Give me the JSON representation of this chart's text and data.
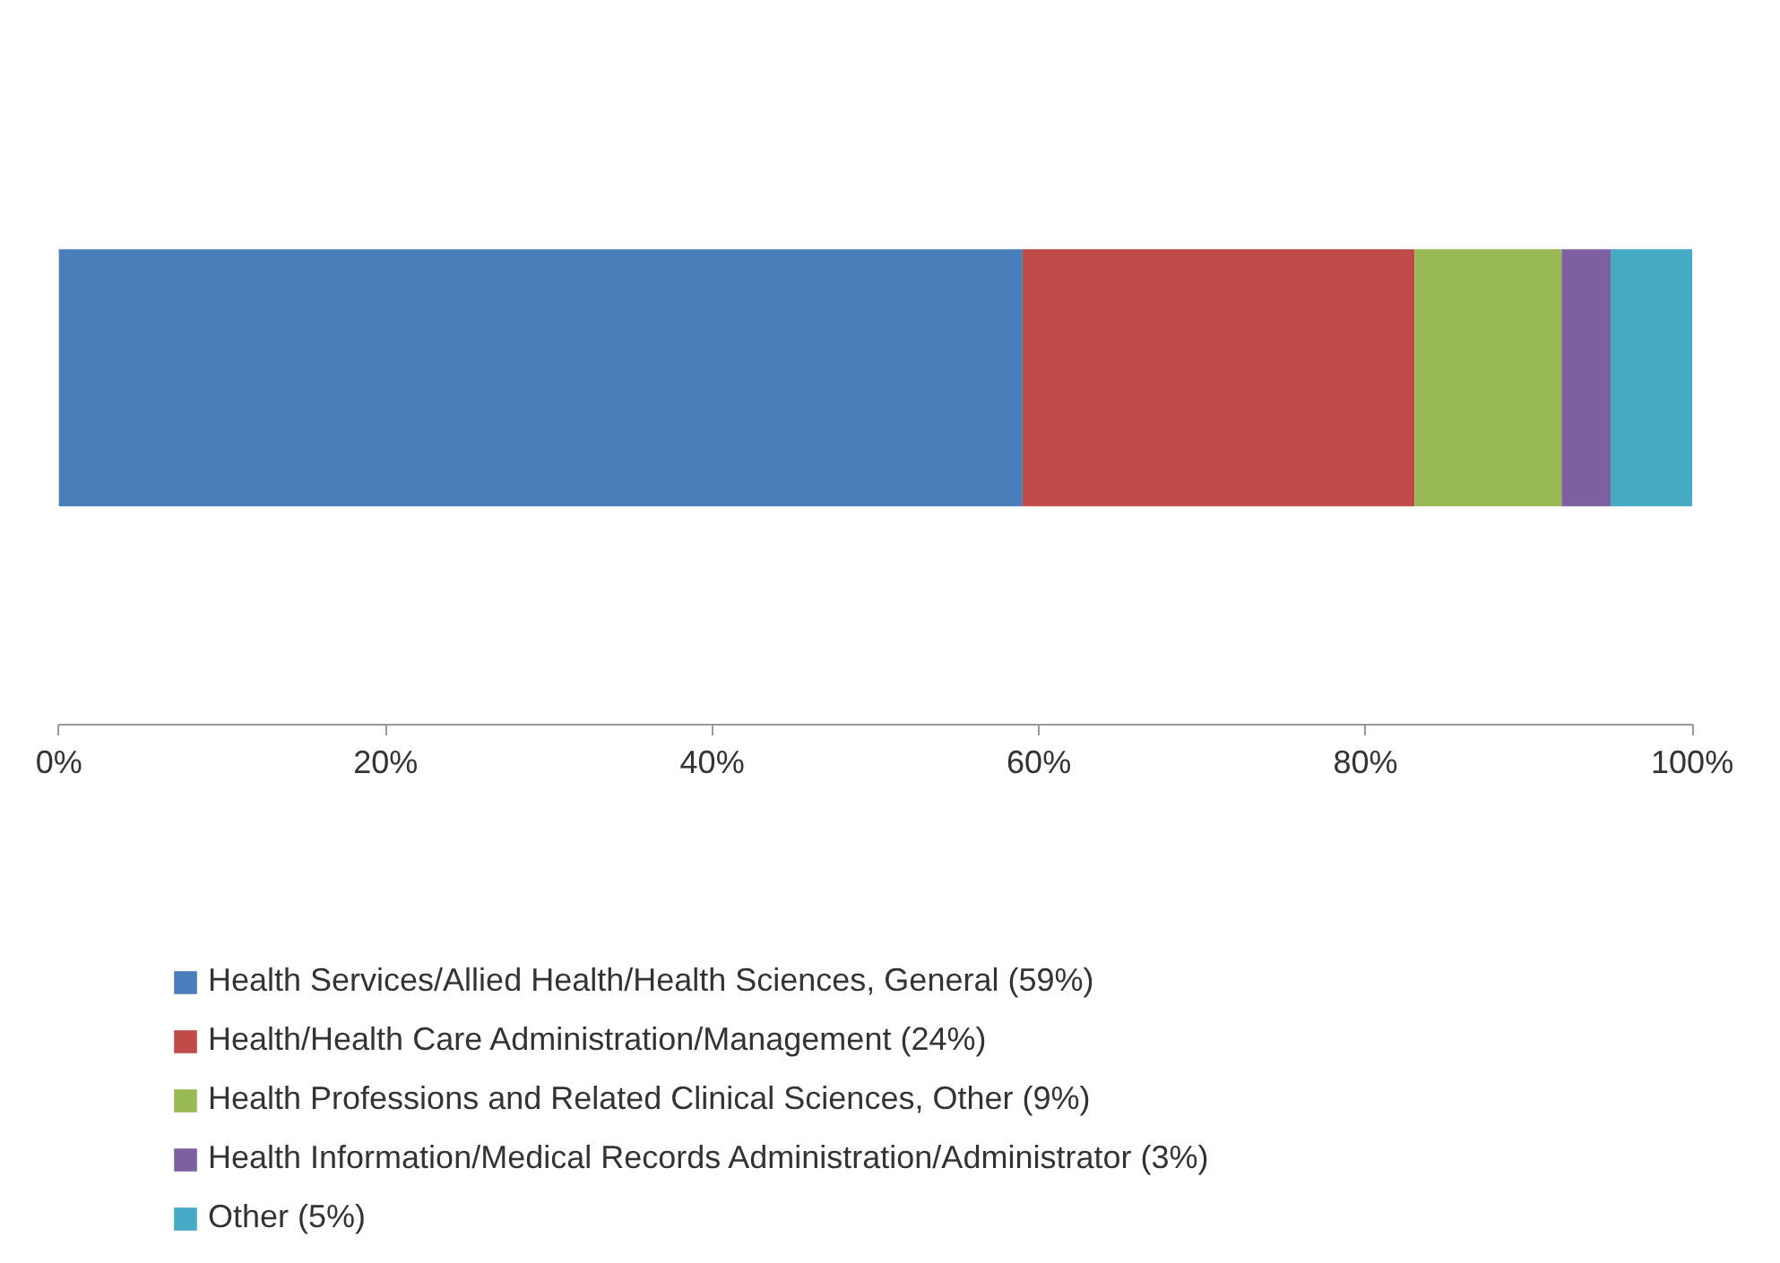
{
  "chart_data": {
    "type": "bar",
    "orientation": "horizontal",
    "stacked": true,
    "categories": [
      null
    ],
    "series": [
      {
        "name": "Health Services/Allied Health/Health Sciences, General (59%)",
        "color": "#4a7ebb",
        "values": [
          59
        ]
      },
      {
        "name": "Health/Health Care Administration/Management (24%)",
        "color": "#be4b48",
        "values": [
          24
        ]
      },
      {
        "name": "Health Professions and Related Clinical Sciences, Other (9%)",
        "color": "#98b954",
        "values": [
          9
        ]
      },
      {
        "name": "Health Information/Medical Records Administration/Administrator (3%)",
        "color": "#7d60a0",
        "values": [
          3
        ]
      },
      {
        "name": "Other (5%)",
        "color": "#46aac5",
        "values": [
          5
        ]
      }
    ],
    "xlim": [
      0,
      100
    ],
    "xticks": [
      {
        "value": 0,
        "label": "0%"
      },
      {
        "value": 20,
        "label": "20%"
      },
      {
        "value": 40,
        "label": "40%"
      },
      {
        "value": 60,
        "label": "60%"
      },
      {
        "value": 80,
        "label": "80%"
      },
      {
        "value": 100,
        "label": "100%"
      }
    ],
    "grid": false,
    "legend": "bottom",
    "tick_labels": "x"
  }
}
